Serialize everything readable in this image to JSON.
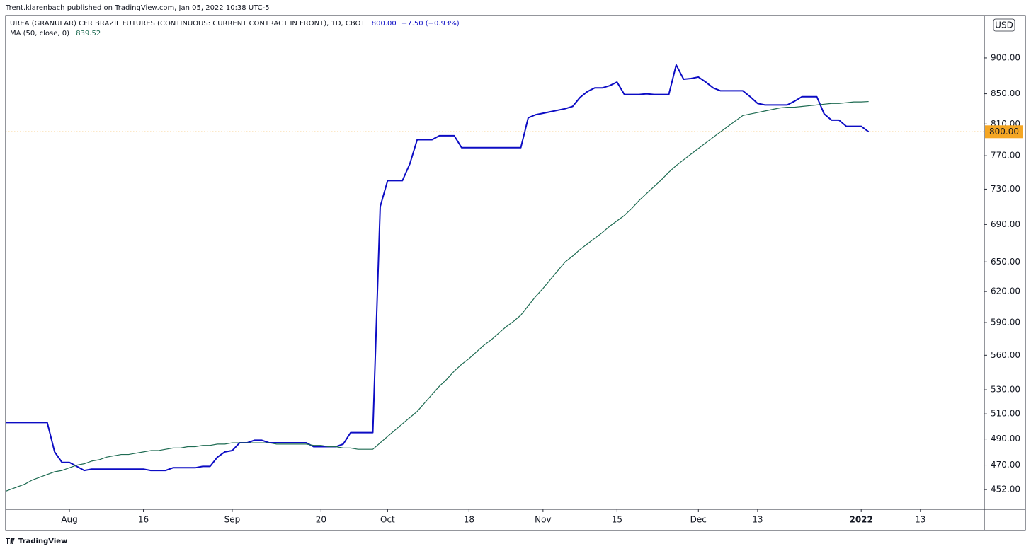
{
  "publisher": "Trent.klarenbach published on TradingView.com, Jan 05, 2022 10:38 UTC-5",
  "footer": "TradingView",
  "chart_data": {
    "type": "line",
    "last_price": "800.00",
    "change": "−7.50 (−0.93%)",
    "ma_value": "839.52",
    "currency": "USD",
    "log_scale": true,
    "x": [
      0,
      1,
      2,
      3,
      4,
      5,
      6,
      7,
      8,
      9,
      10,
      11,
      12,
      13,
      14,
      15,
      16,
      17,
      18,
      19,
      20,
      21,
      22,
      23,
      24,
      25,
      26,
      27,
      28,
      29,
      30,
      31,
      32,
      33,
      34,
      35,
      36,
      37,
      38,
      39,
      40,
      41,
      42,
      43,
      44,
      45,
      46,
      47,
      48,
      49,
      50,
      51,
      52,
      53,
      54,
      55,
      56,
      57,
      58,
      59,
      60,
      61,
      62,
      63,
      64,
      65,
      66,
      67,
      68,
      69,
      70,
      71,
      72,
      73,
      74,
      75,
      76,
      77,
      78,
      79,
      80,
      81,
      82,
      83,
      84,
      85,
      86,
      87,
      88,
      89,
      90,
      91,
      92,
      93,
      94,
      95,
      96,
      97,
      98,
      99,
      100,
      101,
      102,
      103,
      104,
      105,
      106,
      107,
      108,
      109,
      110,
      111,
      112,
      113,
      114,
      115,
      116,
      117
    ],
    "series": [
      {
        "name": "UREA (GRANULAR) CFR BRAZIL FUTURES (CONTINUOUS: CURRENT CONTRACT IN FRONT), 1D, CBOT",
        "color": "#0c0cc4",
        "values": [
          503,
          503,
          503,
          503,
          503,
          503,
          503,
          480,
          472,
          472,
          469,
          466,
          467,
          467,
          467,
          467,
          467,
          467,
          467,
          467,
          466,
          466,
          466,
          468,
          468,
          468,
          468,
          469,
          469,
          476,
          480,
          481,
          487,
          487,
          489,
          489,
          487,
          487,
          487,
          487,
          487,
          487,
          484,
          484,
          484,
          484,
          486,
          495,
          495,
          495,
          495,
          710,
          740,
          740,
          740,
          760,
          790,
          790,
          790,
          795,
          795,
          795,
          780,
          780,
          780,
          780,
          780,
          780,
          780,
          780,
          780,
          818,
          822,
          824,
          826,
          828,
          830,
          833,
          845,
          853,
          858,
          858,
          861,
          866,
          849,
          849,
          849,
          850,
          849,
          849,
          849,
          890,
          870,
          871,
          873,
          866,
          858,
          854,
          854,
          854,
          854,
          846,
          837,
          835,
          835,
          835,
          835,
          840,
          846,
          846,
          846,
          823,
          815,
          815,
          807,
          807,
          807,
          800
        ]
      },
      {
        "name": "MA (50, close, 0)",
        "color": "#1e6b52",
        "values": [
          450,
          452,
          454,
          456,
          459,
          461,
          463,
          465,
          466,
          468,
          470,
          471,
          473,
          474,
          476,
          477,
          478,
          478,
          479,
          480,
          481,
          481,
          482,
          483,
          483,
          484,
          484,
          485,
          485,
          486,
          486,
          487,
          487,
          487,
          487,
          487,
          487,
          486,
          486,
          486,
          486,
          486,
          485,
          485,
          484,
          484,
          483,
          483,
          482,
          482,
          482,
          487,
          492,
          497,
          502,
          507,
          512,
          519,
          526,
          533,
          539,
          546,
          552,
          557,
          563,
          569,
          574,
          580,
          586,
          591,
          597,
          606,
          615,
          623,
          632,
          641,
          650,
          656,
          663,
          669,
          675,
          681,
          688,
          694,
          700,
          708,
          717,
          725,
          733,
          741,
          750,
          758,
          765,
          772,
          779,
          786,
          793,
          800,
          807,
          814,
          821,
          823,
          825,
          827,
          829,
          831,
          832,
          832,
          833,
          834,
          835,
          836,
          837,
          837,
          838,
          839,
          839,
          839.52
        ]
      }
    ],
    "xlim": [
      0,
      132
    ],
    "xticks": [
      {
        "value": 9,
        "label": "Aug"
      },
      {
        "value": 19,
        "label": "16"
      },
      {
        "value": 31,
        "label": "Sep"
      },
      {
        "value": 43,
        "label": "20"
      },
      {
        "value": 52,
        "label": "Oct"
      },
      {
        "value": 63,
        "label": "18"
      },
      {
        "value": 73,
        "label": "Nov"
      },
      {
        "value": 83,
        "label": "15"
      },
      {
        "value": 94,
        "label": "Dec"
      },
      {
        "value": 102,
        "label": "13"
      },
      {
        "value": 116,
        "label": "2022"
      },
      {
        "value": 124,
        "label": "13"
      }
    ],
    "ylim": [
      438,
      963
    ],
    "yticks": [
      {
        "value": 452,
        "label": "452.00"
      },
      {
        "value": 470,
        "label": "470.00"
      },
      {
        "value": 490,
        "label": "490.00"
      },
      {
        "value": 510,
        "label": "510.00"
      },
      {
        "value": 530,
        "label": "530.00"
      },
      {
        "value": 560,
        "label": "560.00"
      },
      {
        "value": 590,
        "label": "590.00"
      },
      {
        "value": 620,
        "label": "620.00"
      },
      {
        "value": 650,
        "label": "650.00"
      },
      {
        "value": 690,
        "label": "690.00"
      },
      {
        "value": 730,
        "label": "730.00"
      },
      {
        "value": 770,
        "label": "770.00"
      },
      {
        "value": 810,
        "label": "810.00"
      },
      {
        "value": 850,
        "label": "850.00"
      },
      {
        "value": 900,
        "label": "900.00"
      }
    ],
    "price_line_color": "#f5a623"
  }
}
